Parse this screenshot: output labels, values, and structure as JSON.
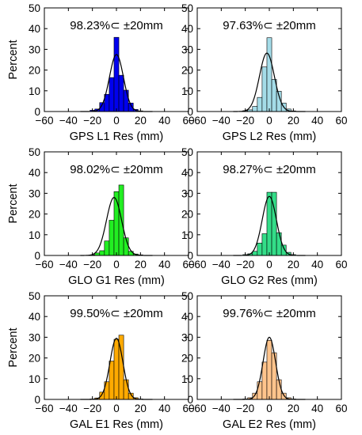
{
  "chart_data": [
    {
      "type": "histogram",
      "xlabel": "GPS L1 Res (mm)",
      "ylabel": "Percent",
      "annotation": "98.23%⊂ ±20mm",
      "xlim": [
        -60,
        60
      ],
      "ylim": [
        0,
        50
      ],
      "xticks": [
        -60,
        -40,
        -20,
        0,
        20,
        40,
        60
      ],
      "yticks": [
        0,
        10,
        20,
        30,
        40,
        50
      ],
      "bin_width": 4,
      "bin_starts": [
        -22,
        -18,
        -14,
        -10,
        -6,
        -2,
        2,
        6,
        10,
        14,
        18
      ],
      "values": [
        0.6,
        1.2,
        4.3,
        8.3,
        16.4,
        35.8,
        17.5,
        10.3,
        4.1,
        1.0,
        0.3
      ],
      "bar_color": "#0000ee",
      "fit_curve": {
        "mean": 0,
        "peak": 27.5,
        "sigma": 5.8
      },
      "grid": false
    },
    {
      "type": "histogram",
      "xlabel": "GPS L2 Res (mm)",
      "ylabel": "",
      "annotation": "97.63%⊂ ±20mm",
      "xlim": [
        -60,
        60
      ],
      "ylim": [
        0,
        50
      ],
      "xticks": [
        -60,
        -40,
        -20,
        0,
        20,
        40,
        60
      ],
      "yticks": [
        0,
        10,
        20,
        30,
        40,
        50
      ],
      "bin_width": 4,
      "bin_starts": [
        -22,
        -18,
        -14,
        -10,
        -6,
        -2,
        2,
        6,
        10,
        14,
        18
      ],
      "values": [
        0.4,
        0.8,
        2.5,
        6.8,
        21.5,
        35.6,
        15.5,
        9.8,
        4.1,
        1.2,
        0.3
      ],
      "bar_color": "#a4dce8",
      "fit_curve": {
        "mean": -2,
        "peak": 28.2,
        "sigma": 6.2
      },
      "grid": false
    },
    {
      "type": "histogram",
      "xlabel": "GLO G1 Res (mm)",
      "ylabel": "Percent",
      "annotation": "98.02%⊂ ±20mm",
      "xlim": [
        -60,
        60
      ],
      "ylim": [
        0,
        50
      ],
      "xticks": [
        -60,
        -40,
        -20,
        0,
        20,
        40,
        60
      ],
      "yticks": [
        0,
        10,
        20,
        30,
        40,
        50
      ],
      "bin_width": 4,
      "bin_starts": [
        -22,
        -18,
        -14,
        -10,
        -6,
        -2,
        2,
        6,
        10,
        14,
        18
      ],
      "values": [
        0.3,
        1.2,
        2.3,
        7.0,
        17.0,
        30.8,
        34.0,
        8.5,
        2.0,
        0.7,
        0.3
      ],
      "bar_color": "#22ee22",
      "fit_curve": {
        "mean": -2,
        "peak": 28.0,
        "sigma": 6.3
      },
      "grid": false
    },
    {
      "type": "histogram",
      "xlabel": "GLO G2 Res (mm)",
      "ylabel": "",
      "annotation": "98.27%⊂ ±20mm",
      "xlim": [
        -60,
        60
      ],
      "ylim": [
        0,
        50
      ],
      "xticks": [
        -60,
        -40,
        -20,
        0,
        20,
        40,
        60
      ],
      "yticks": [
        0,
        10,
        20,
        30,
        40,
        50
      ],
      "bin_width": 4,
      "bin_starts": [
        -22,
        -18,
        -14,
        -10,
        -6,
        -2,
        2,
        6,
        10,
        14,
        18
      ],
      "values": [
        0.4,
        0.8,
        2.0,
        6.0,
        10.5,
        30.5,
        30.5,
        11.0,
        5.0,
        1.5,
        0.4
      ],
      "bar_color": "#33dd88",
      "fit_curve": {
        "mean": 0,
        "peak": 28.5,
        "sigma": 5.9
      },
      "grid": false
    },
    {
      "type": "histogram",
      "xlabel": "GAL E1 Res (mm)",
      "ylabel": "Percent",
      "annotation": "99.50%⊂ ±20mm",
      "xlim": [
        -60,
        60
      ],
      "ylim": [
        0,
        50
      ],
      "xticks": [
        -60,
        -40,
        -20,
        0,
        20,
        40,
        60
      ],
      "yticks": [
        0,
        10,
        20,
        30,
        40,
        50
      ],
      "bin_width": 4,
      "bin_starts": [
        -22,
        -18,
        -14,
        -10,
        -6,
        -2,
        2,
        6,
        10,
        14,
        18
      ],
      "values": [
        0.2,
        0.7,
        3.5,
        8.5,
        18.5,
        29.0,
        31.0,
        9.5,
        3.0,
        0.8,
        0.2
      ],
      "bar_color": "#ffaa00",
      "fit_curve": {
        "mean": 0,
        "peak": 29.5,
        "sigma": 5.4
      },
      "grid": false
    },
    {
      "type": "histogram",
      "xlabel": "GAL E2 Res (mm)",
      "ylabel": "",
      "annotation": "99.76%⊂ ±20mm",
      "xlim": [
        -60,
        60
      ],
      "ylim": [
        0,
        50
      ],
      "xticks": [
        -60,
        -40,
        -20,
        0,
        20,
        40,
        60
      ],
      "yticks": [
        0,
        10,
        20,
        30,
        40,
        50
      ],
      "bin_width": 4,
      "bin_starts": [
        -22,
        -18,
        -14,
        -10,
        -6,
        -2,
        2,
        6,
        10,
        14,
        18
      ],
      "values": [
        0.2,
        0.8,
        3.0,
        8.5,
        18.0,
        28.5,
        22.5,
        9.5,
        3.0,
        0.8,
        0.2
      ],
      "bar_color": "#ffc48c",
      "fit_curve": {
        "mean": 0,
        "peak": 30.0,
        "sigma": 5.2
      },
      "grid": false
    }
  ]
}
